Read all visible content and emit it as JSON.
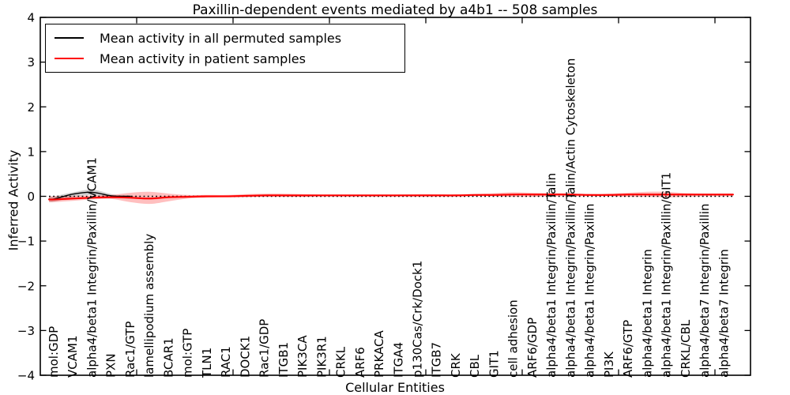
{
  "figure": {
    "title": "Paxillin-dependent events mediated by a4b1 -- 508 samples"
  },
  "legend": {
    "entries": [
      {
        "label": "Mean activity in all permuted samples",
        "color": "#000000"
      },
      {
        "label": "Mean activity in patient samples",
        "color": "#ff0000"
      }
    ]
  },
  "chart_data": {
    "type": "line",
    "title": "Paxillin-dependent events mediated by a4b1 -- 508 samples",
    "xlabel": "Cellular Entities",
    "ylabel": "Inferred Activity",
    "ylim": [
      -4,
      4
    ],
    "yticks": [
      4,
      3,
      2,
      1,
      0,
      -1,
      -2,
      -3,
      -4
    ],
    "ytick_labels": [
      "4",
      "3",
      "2",
      "1",
      "0",
      "−1",
      "−2",
      "−3",
      "−4"
    ],
    "grid": false,
    "legend_position": "upper left",
    "zero_line": {
      "value": 0,
      "style": "dotted",
      "color": "#000000"
    },
    "categories": [
      "mol:GDP",
      "VCAM1",
      "alpha4/beta1 Integrin/Paxillin/VCAM1",
      "PXN",
      "Rac1/GTP",
      "lamellipodium assembly",
      "BCAR1",
      "mol:GTP",
      "TLN1",
      "RAC1",
      "DOCK1",
      "Rac1/GDP",
      "ITGB1",
      "PIK3CA",
      "PIK3R1",
      "CRKL",
      "ARF6",
      "PRKACA",
      "ITGA4",
      "p130Cas/Crk/Dock1",
      "ITGB7",
      "CRK",
      "CBL",
      "GIT1",
      "cell adhesion",
      "ARF6/GDP",
      "alpha4/beta1 Integrin/Paxillin/Talin",
      "alpha4/beta1 Integrin/Paxillin/Talin/Actin Cytoskeleton",
      "alpha4/beta1 Integrin/Paxillin",
      "PI3K",
      "ARF6/GTP",
      "alpha4/beta1 Integrin",
      "alpha4/beta1 Integrin/Paxillin/GIT1",
      "CRKL/CBL",
      "alpha4/beta7 Integrin/Paxillin",
      "alpha4/beta7 Integrin"
    ],
    "series": [
      {
        "name": "Mean activity in all permuted samples",
        "color": "#000000",
        "clip_zero": true,
        "values": [
          -0.06,
          0.05,
          0.09,
          0.01,
          0.0,
          0.0,
          0.0,
          0.0,
          0.0,
          0.0,
          0.0,
          0.0,
          0.0,
          0.0,
          0.0,
          0.0,
          0.0,
          0.0,
          0.0,
          0.0,
          0.0,
          0.0,
          0.0,
          0.0,
          0.0,
          0.0,
          0.0,
          0.0,
          0.0,
          0.0,
          0.0,
          0.0,
          0.0,
          0.0,
          0.0,
          0.0
        ]
      },
      {
        "name": "Mean activity in patient samples",
        "color": "#ff0000",
        "clip_zero": false,
        "values": [
          -0.07,
          -0.05,
          -0.03,
          -0.02,
          -0.03,
          -0.05,
          -0.02,
          -0.01,
          0.0,
          0.0,
          0.01,
          0.02,
          0.02,
          0.02,
          0.02,
          0.02,
          0.02,
          0.02,
          0.02,
          0.02,
          0.02,
          0.02,
          0.03,
          0.03,
          0.04,
          0.04,
          0.04,
          0.04,
          0.03,
          0.03,
          0.04,
          0.04,
          0.04,
          0.04,
          0.04,
          0.04
        ]
      }
    ],
    "bands": [
      {
        "series": "Mean activity in all permuted samples",
        "color": "#000000",
        "opacity": 0.18,
        "lower": [
          -0.12,
          -0.02,
          0.03,
          -0.04,
          -0.01,
          0,
          0,
          0,
          0,
          0,
          0,
          0,
          0,
          0,
          0,
          0,
          0,
          0,
          0,
          0,
          0,
          0,
          0,
          0,
          0,
          0,
          0,
          0,
          0,
          0,
          0,
          0,
          0,
          0,
          0,
          0
        ],
        "upper": [
          0.0,
          0.09,
          0.15,
          0.05,
          0.01,
          0,
          0,
          0,
          0,
          0,
          0,
          0,
          0,
          0,
          0,
          0,
          0,
          0,
          0,
          0,
          0,
          0,
          0,
          0,
          0,
          0,
          0,
          0,
          0,
          0,
          0,
          0,
          0,
          0,
          0,
          0
        ]
      },
      {
        "series": "Mean activity in patient samples",
        "color": "#ff0000",
        "opacity": 0.25,
        "lower": [
          -0.13,
          -0.1,
          -0.07,
          -0.06,
          -0.13,
          -0.17,
          -0.11,
          -0.05,
          -0.03,
          -0.02,
          -0.02,
          -0.01,
          -0.01,
          -0.01,
          0.0,
          0.0,
          0.0,
          0.0,
          0.0,
          0.0,
          0.0,
          0.0,
          0.0,
          0.0,
          -0.01,
          -0.01,
          0.0,
          0.0,
          0.0,
          0.0,
          -0.01,
          -0.01,
          -0.02,
          -0.01,
          0.0,
          0.0
        ],
        "upper": [
          0.0,
          0.01,
          0.02,
          0.03,
          0.08,
          0.1,
          0.06,
          0.03,
          0.03,
          0.03,
          0.05,
          0.06,
          0.06,
          0.05,
          0.04,
          0.04,
          0.04,
          0.04,
          0.04,
          0.05,
          0.05,
          0.05,
          0.05,
          0.07,
          0.09,
          0.08,
          0.07,
          0.06,
          0.05,
          0.06,
          0.08,
          0.1,
          0.1,
          0.07,
          0.06,
          0.06
        ]
      }
    ],
    "inner_band": {
      "series": "Mean activity in patient samples",
      "halfwidth": 0.022,
      "color": "#ff0000",
      "opacity": 0.3
    }
  }
}
